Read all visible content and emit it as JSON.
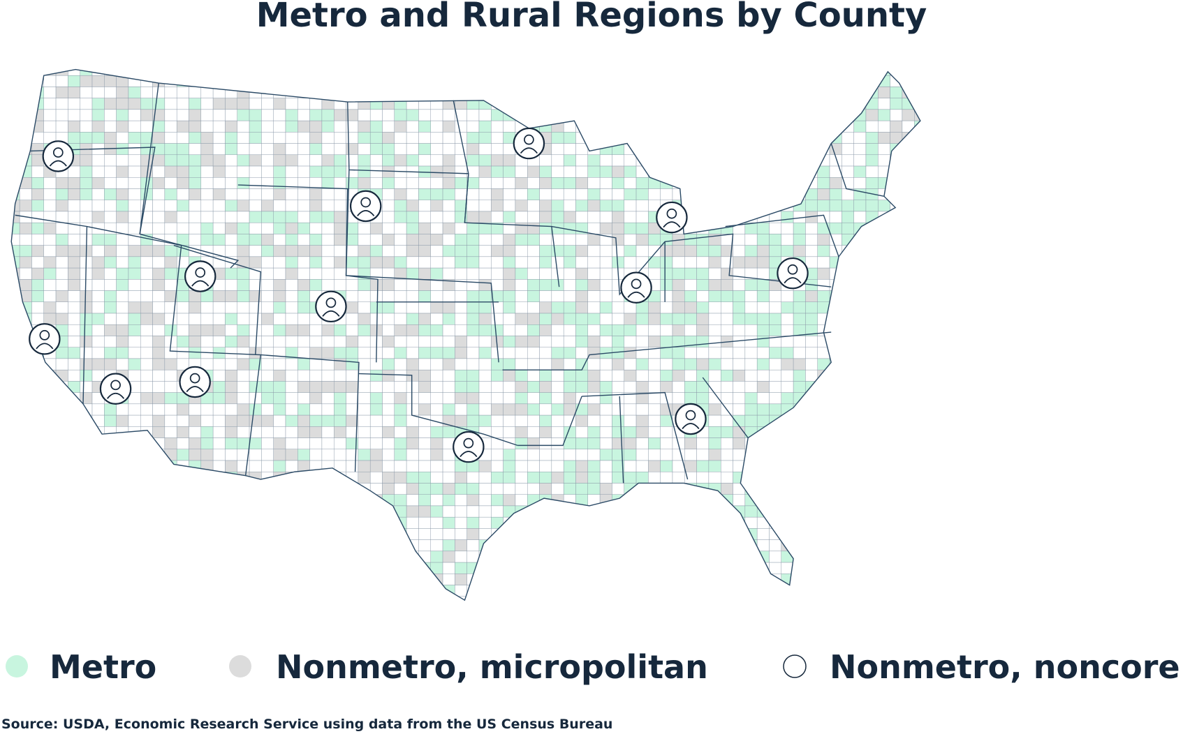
{
  "title": "Metro and Rural Regions by County",
  "legend": [
    {
      "label": "Metro",
      "color": "#c8f5df"
    },
    {
      "label": "Nonmetro, micropolitan",
      "color": "#dcdcdc"
    },
    {
      "label": "Nonmetro, noncore",
      "color": "#ffffff"
    }
  ],
  "source": "Source: USDA, Economic Research Service using data from the US Census Bureau"
}
